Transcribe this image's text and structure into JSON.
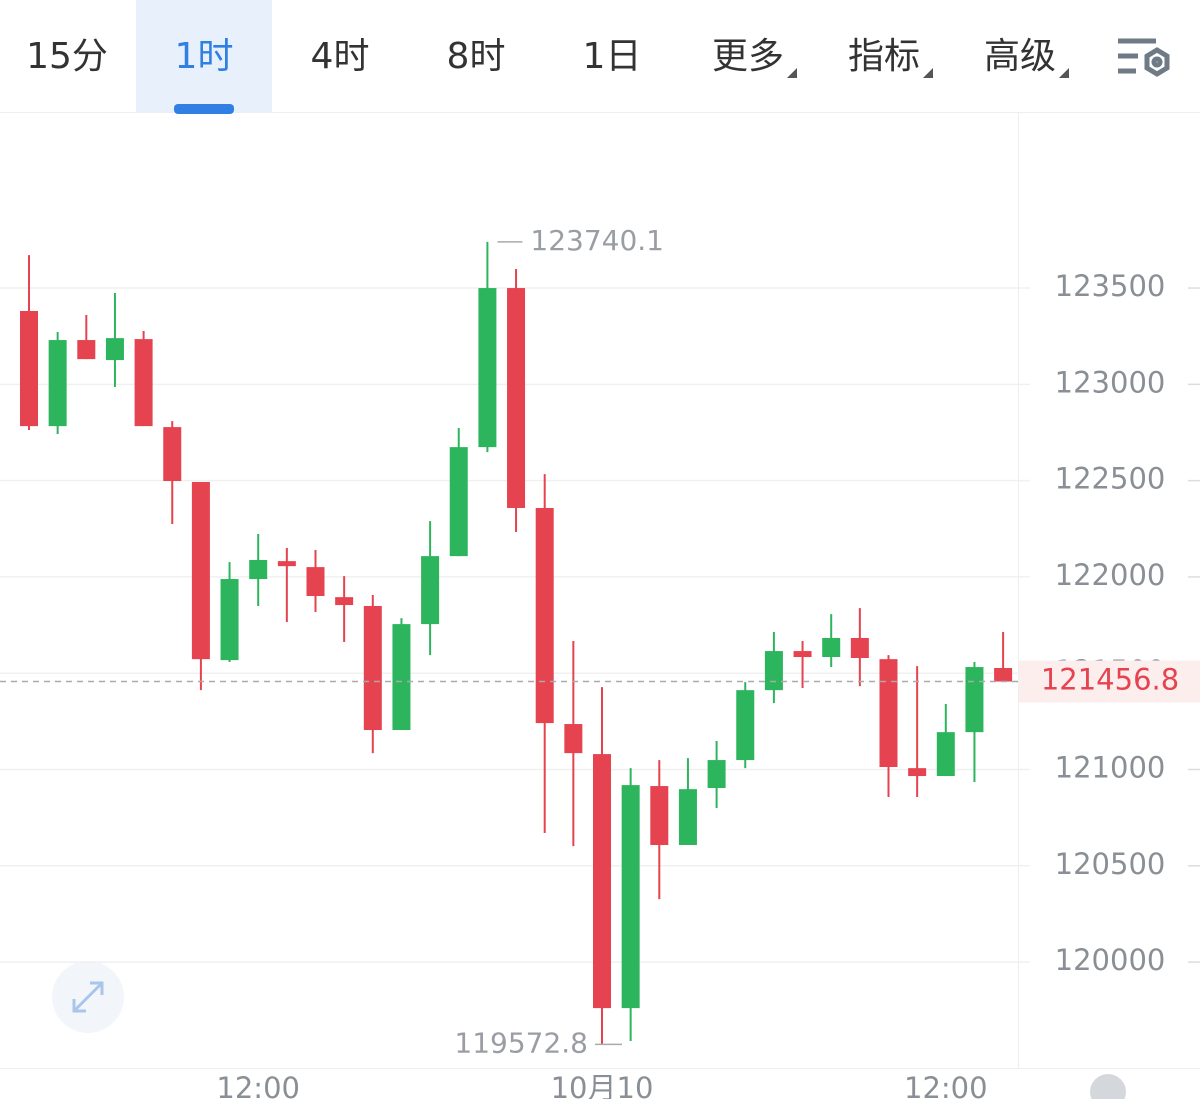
{
  "tabs": {
    "items": [
      "15分",
      "1时",
      "4时",
      "8时",
      "1日",
      "更多",
      "指标",
      "高级"
    ],
    "active": 1,
    "dropdown": [
      5,
      6,
      7
    ]
  },
  "chart_data": {
    "type": "candlestick",
    "categories": [
      null,
      null,
      null,
      null,
      null,
      null,
      null,
      null,
      "12:00",
      null,
      null,
      null,
      null,
      null,
      null,
      null,
      null,
      null,
      null,
      null,
      "10月10",
      null,
      null,
      null,
      null,
      null,
      null,
      null,
      null,
      null,
      null,
      null,
      "12:00",
      null,
      null
    ],
    "open": [
      123381,
      122783,
      123230,
      123126,
      123235,
      122778,
      122493,
      121568,
      121989,
      122082,
      122051,
      121895,
      121849,
      121205,
      121755,
      122108,
      122674,
      123500,
      122358,
      121236,
      121080,
      119761,
      120914,
      120608,
      120904,
      121049,
      121412,
      121615,
      121584,
      121683,
      121573,
      121007,
      120966,
      121194,
      121527
    ],
    "high": [
      123671,
      123272,
      123360,
      123474,
      123277,
      122809,
      122493,
      122077,
      122223,
      122150,
      122140,
      122004,
      121906,
      121786,
      122290,
      122773,
      123740.1,
      123599,
      122534,
      121667,
      121428,
      121007,
      121049,
      121059,
      121148,
      121454,
      121714,
      121667,
      121807,
      121838,
      121594,
      121537,
      121340,
      121558,
      121714
    ],
    "low": [
      122763,
      122742,
      123131,
      122986,
      122783,
      122275,
      121412,
      121558,
      121849,
      121766,
      121818,
      121662,
      121085,
      121205,
      121594,
      122108,
      122648,
      122233,
      120670,
      120602,
      119572.8,
      119590,
      120327,
      120608,
      120800,
      121007,
      121345,
      121423,
      121532,
      121433,
      120857,
      120857,
      120966,
      120935,
      121456.8
    ],
    "close": [
      122783,
      123230,
      123131,
      123240,
      122783,
      122498,
      121573,
      121989,
      122088,
      122056,
      121901,
      121854,
      121205,
      121755,
      122108,
      122674,
      123500,
      122358,
      121241,
      121085,
      119761,
      120919,
      120608,
      120898,
      121049,
      121412,
      121615,
      121584,
      121683,
      121579,
      121013,
      120966,
      121194,
      121532,
      121456.8
    ],
    "up_color": "#2db55d",
    "down_color": "#e5434f",
    "ylim": [
      119450,
      124409
    ],
    "yticks": [
      120000,
      120500,
      121000,
      121500,
      122000,
      122500,
      123000,
      123500
    ],
    "grid": true,
    "last_price": 121456.8,
    "max_price": 123740.1,
    "min_price": 119572.8
  }
}
